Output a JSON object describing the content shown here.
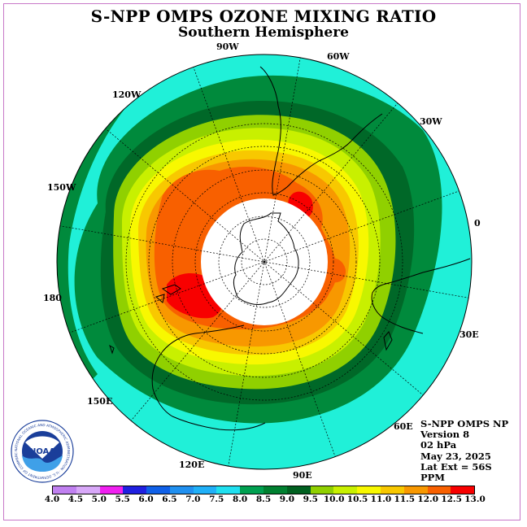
{
  "title": "S-NPP OMPS OZONE MIXING RATIO",
  "subtitle": "Southern Hemisphere",
  "lon_labels": [
    "90W",
    "60W",
    "30W",
    "0",
    "30E",
    "60E",
    "90E",
    "120E",
    "150E",
    "180",
    "150W",
    "120W"
  ],
  "info": {
    "instrument": "S-NPP OMPS NP",
    "version": "Version 8",
    "level": "02 hPa",
    "date": "May 23, 2025",
    "lat_ext": "Lat Ext = 56S",
    "units": "PPM"
  },
  "logo": {
    "text": "NOAA",
    "ring_text": "NATIONAL OCEANIC AND ATMOSPHERIC ADMINISTRATION · U.S. DEPARTMENT OF COMMERCE"
  },
  "colorbar": {
    "ticks": [
      "4.0",
      "4.5",
      "5.0",
      "5.5",
      "6.0",
      "6.5",
      "7.0",
      "7.5",
      "8.0",
      "8.5",
      "9.0",
      "9.5",
      "10.0",
      "10.5",
      "11.0",
      "11.5",
      "12.0",
      "12.5",
      "13.0"
    ],
    "colors": [
      "#c080f0",
      "#d8a8f8",
      "#f020f0",
      "#2020e0",
      "#1060e8",
      "#2090f0",
      "#20b0f8",
      "#20e0f0",
      "#00a050",
      "#008030",
      "#006020",
      "#90d000",
      "#c8f000",
      "#f8f800",
      "#f8c800",
      "#f89800",
      "#f86000",
      "#f80000",
      "#804020"
    ]
  }
}
